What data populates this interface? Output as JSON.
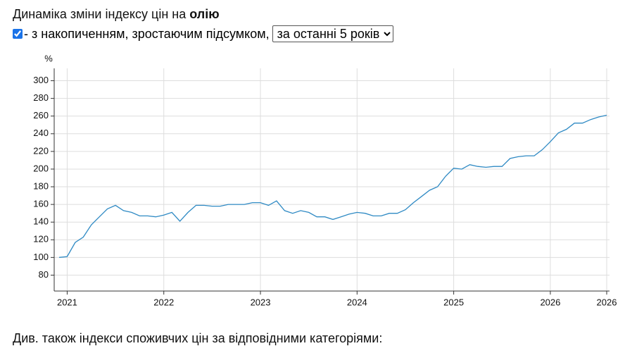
{
  "header": {
    "title_prefix": "Динаміка зміни індексу цін на",
    "title_bold": "олію",
    "checkbox_label": "- з накопиченням, зростаючим підсумком,",
    "period_option": "за останні 5 років",
    "checkbox_checked": true
  },
  "footer_text": "Див. також індекси споживчих цін за відповідними категоріями:",
  "chart_data": {
    "type": "line",
    "y_label": "%",
    "categories": [
      null,
      "2021",
      null,
      null,
      null,
      null,
      null,
      null,
      null,
      null,
      null,
      null,
      null,
      "2022",
      null,
      null,
      null,
      null,
      null,
      null,
      null,
      null,
      null,
      null,
      null,
      "2023",
      null,
      null,
      null,
      null,
      null,
      null,
      null,
      null,
      null,
      null,
      null,
      "2024",
      null,
      null,
      null,
      null,
      null,
      null,
      null,
      null,
      null,
      null,
      null,
      "2025",
      null,
      null,
      null,
      null,
      null,
      null,
      null,
      null,
      null,
      null,
      null,
      "2026",
      null,
      null,
      null,
      null,
      null,
      null,
      "2026"
    ],
    "values": [
      100,
      101,
      117,
      123,
      137,
      146,
      155,
      159,
      153,
      151,
      147,
      147,
      146,
      148,
      151,
      141,
      151,
      159,
      159,
      158,
      158,
      160,
      160,
      160,
      162,
      162,
      159,
      164,
      153,
      150,
      153,
      151,
      146,
      146,
      143,
      146,
      149,
      151,
      150,
      147,
      147,
      150,
      150,
      154,
      162,
      169,
      176,
      180,
      192,
      201,
      200,
      205,
      203,
      202,
      203,
      203,
      212,
      214,
      215,
      215,
      222,
      231,
      241,
      245,
      252,
      252,
      256,
      259,
      261
    ],
    "color": "#2f8ac4",
    "ylim": [
      62,
      314
    ],
    "yticks": [
      80,
      100,
      120,
      140,
      160,
      180,
      200,
      220,
      240,
      260,
      280,
      300
    ],
    "grid": true
  }
}
